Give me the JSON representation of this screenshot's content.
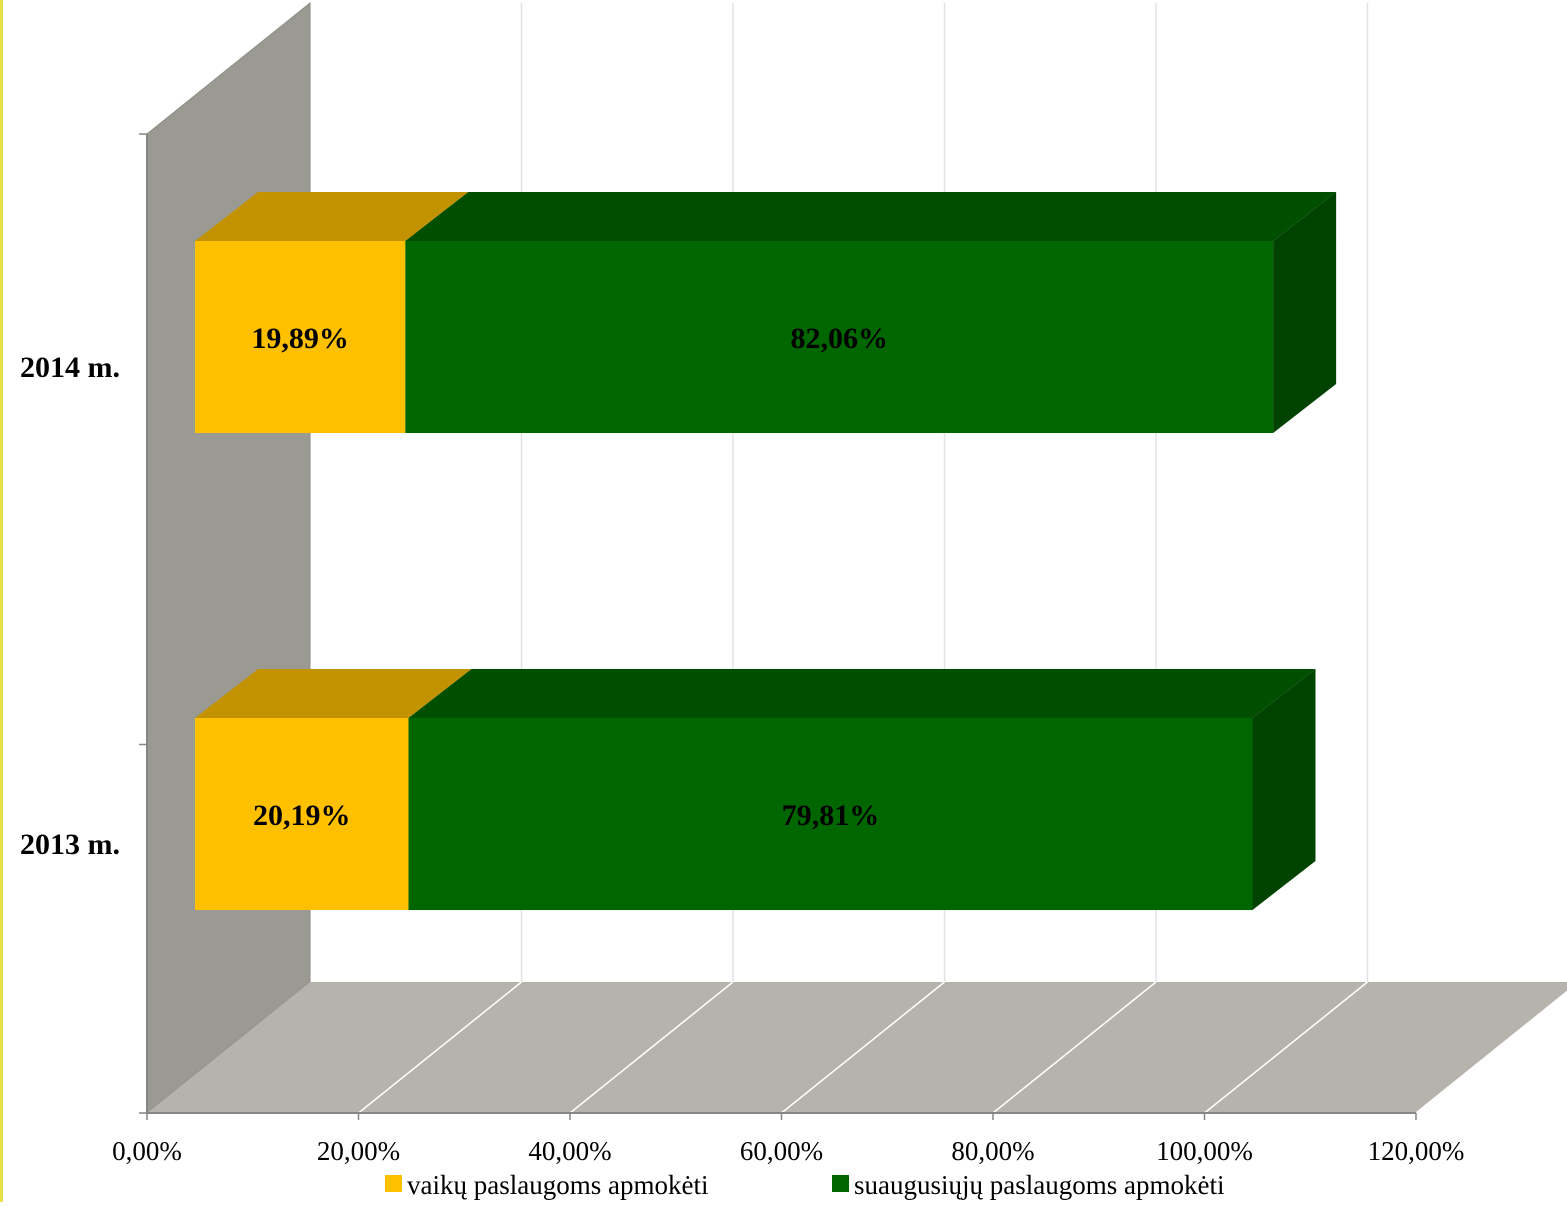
{
  "chart_data": {
    "type": "bar",
    "orientation": "horizontal",
    "stacked": true,
    "three_d": true,
    "title": "",
    "xlabel": "",
    "ylabel": "",
    "categories": [
      "2013 m.",
      "2014 m."
    ],
    "xlim": [
      0,
      120
    ],
    "x_ticks": [
      "0,00%",
      "20,00%",
      "40,00%",
      "60,00%",
      "80,00%",
      "100,00%",
      "120,00%"
    ],
    "grid": true,
    "legend_position": "bottom",
    "series": [
      {
        "name": "vaikų paslaugoms apmokėti",
        "color": "#ffc000",
        "values": [
          20.19,
          19.89
        ],
        "labels": [
          "20,19%",
          "19,89%"
        ]
      },
      {
        "name": "suaugusiųjų paslaugoms apmokėti",
        "color": "#006600",
        "values": [
          79.81,
          82.06
        ],
        "labels": [
          "79,81%",
          "82,06%"
        ]
      }
    ],
    "colors": {
      "wall": "#9b9a92",
      "floor": "#b6b3ac",
      "grid": "#e3e3e3",
      "axis": "#868686"
    }
  }
}
